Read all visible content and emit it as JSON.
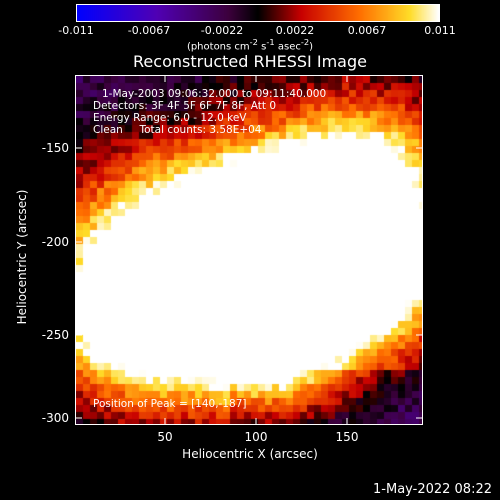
{
  "colorbar": {
    "ticks": [
      "-0.011",
      "-0.0067",
      "-0.0022",
      "0.0022",
      "0.0067",
      "0.011"
    ],
    "units_pre": "(photons cm",
    "units_sup1": "-2",
    "units_mid": " s",
    "units_sup2": "-1",
    "units_mid2": " asec",
    "units_sup3": "-2",
    "units_post": ")"
  },
  "title": "Reconstructed RHESSI Image",
  "info": {
    "time_range": "1-May-2003 09:06:32.000 to 09:11:40.000",
    "detectors": "Detectors: 3F 4F 5F 6F 7F 8F, Att 0",
    "energy": "Energy Range: 6.0 - 12.0 keV",
    "clean": "Clean     Total counts: 3.58E+04",
    "peak": "Position of Peak = [140,-187]"
  },
  "axes": {
    "x_label": "Heliocentric X (arcsec)",
    "y_label": "Heliocentric Y (arcsec)",
    "x_ticks": [
      "50",
      "100",
      "150"
    ],
    "y_ticks": [
      "-150",
      "-200",
      "-250",
      "-300"
    ]
  },
  "footer_date": "1-May-2022 08:22"
}
